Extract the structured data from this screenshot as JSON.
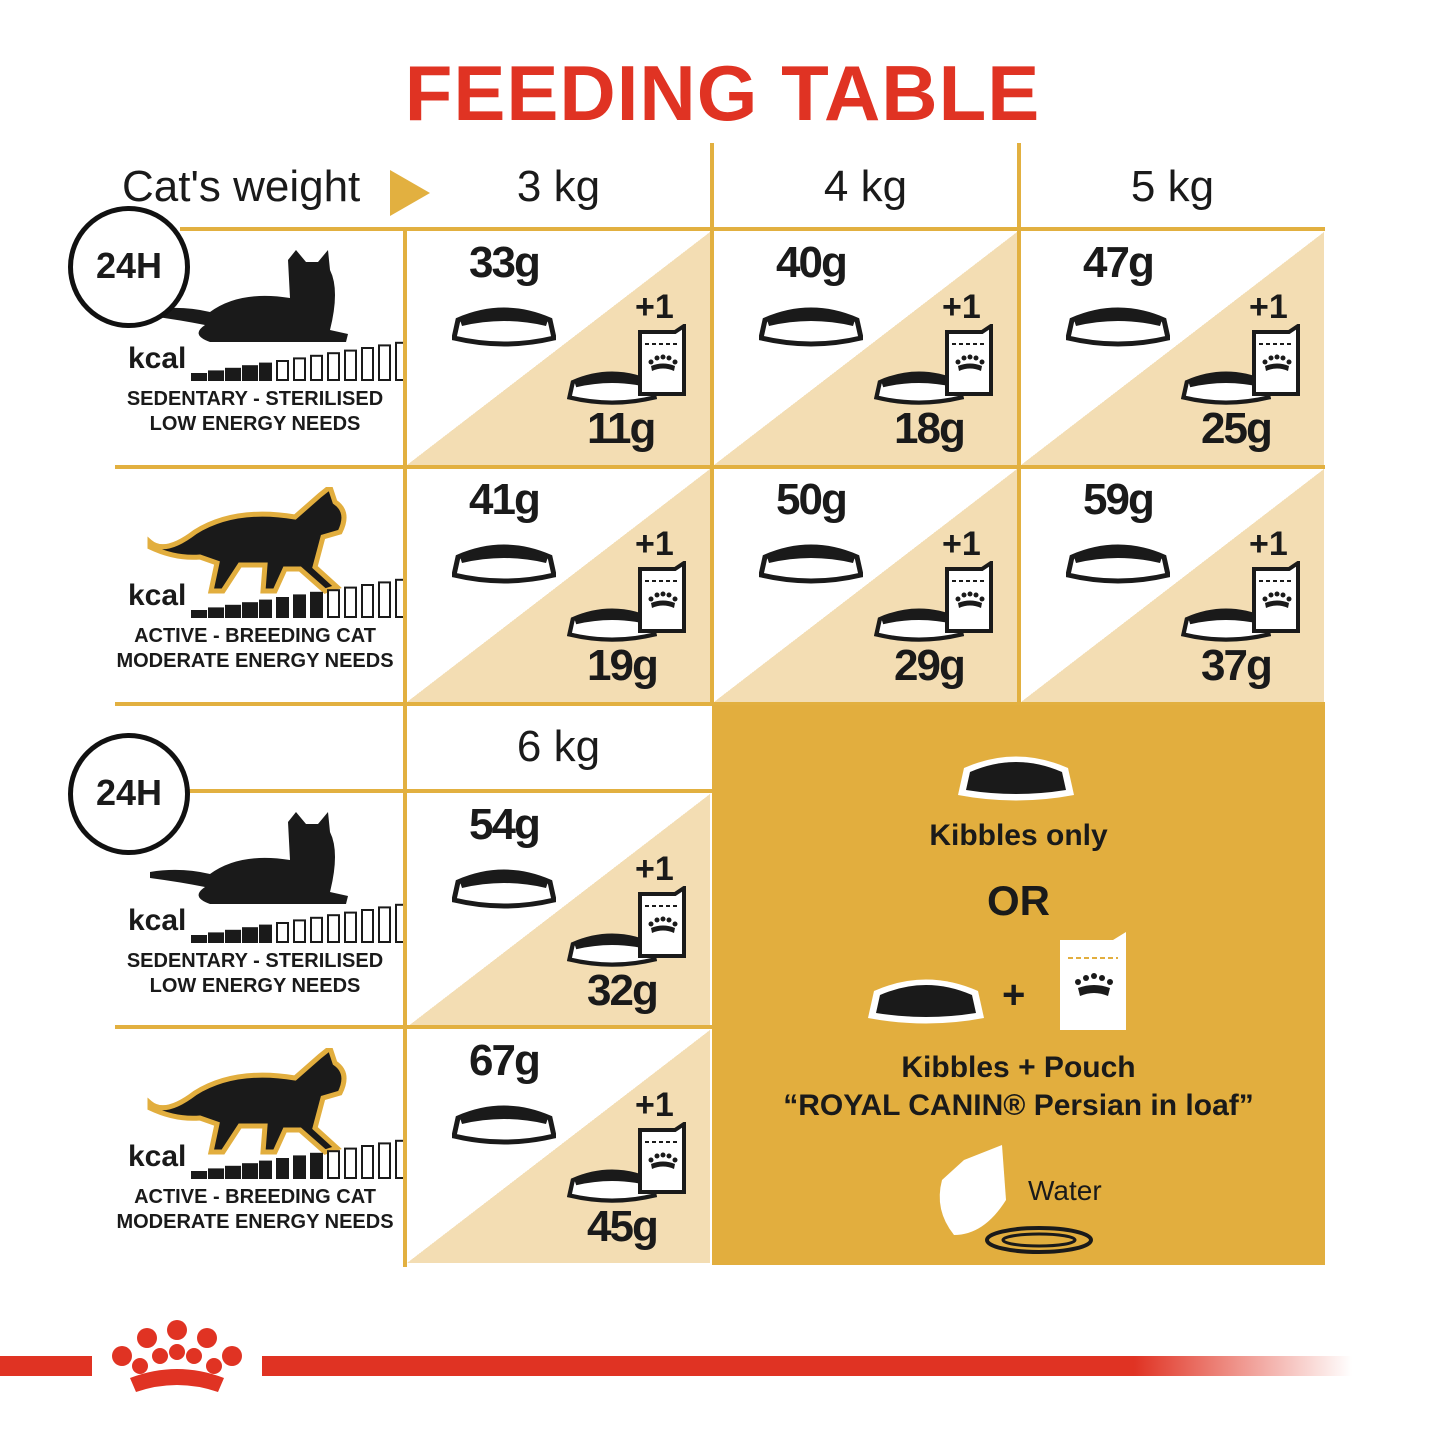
{
  "title": "FEEDING TABLE",
  "header": {
    "cats_weight": "Cat's weight",
    "weights": [
      "3 kg",
      "4 kg",
      "5 kg"
    ],
    "weight_6": "6 kg"
  },
  "clock_label": "24H",
  "profiles": {
    "sedentary": {
      "kcal": "kcal",
      "line1": "SEDENTARY - STERILISED",
      "line2": "LOW ENERGY NEEDS"
    },
    "active": {
      "kcal": "kcal",
      "line1": "ACTIVE - BREEDING CAT",
      "line2": "MODERATE ENERGY NEEDS"
    }
  },
  "plus_label": "+1",
  "rows": [
    {
      "profile": "sedentary",
      "cells": [
        {
          "kibbles": "33g",
          "mixed": "11g"
        },
        {
          "kibbles": "40g",
          "mixed": "18g"
        },
        {
          "kibbles": "47g",
          "mixed": "25g"
        }
      ]
    },
    {
      "profile": "active",
      "cells": [
        {
          "kibbles": "41g",
          "mixed": "19g"
        },
        {
          "kibbles": "50g",
          "mixed": "29g"
        },
        {
          "kibbles": "59g",
          "mixed": "37g"
        }
      ]
    },
    {
      "profile": "sedentary",
      "cells": [
        {
          "kibbles": "54g",
          "mixed": "32g"
        }
      ]
    },
    {
      "profile": "active",
      "cells": [
        {
          "kibbles": "67g",
          "mixed": "45g"
        }
      ]
    }
  ],
  "legend": {
    "kibbles_only": "Kibbles only",
    "or": "OR",
    "plus": "+",
    "kibbles_pouch": "Kibbles + Pouch",
    "product": "“ROYAL CANIN® Persian in loaf”",
    "water": "Water"
  },
  "colors": {
    "red": "#e03323",
    "gold": "#e2b040",
    "beige": "#f3ddb3",
    "panel": "#e2ae3e"
  }
}
